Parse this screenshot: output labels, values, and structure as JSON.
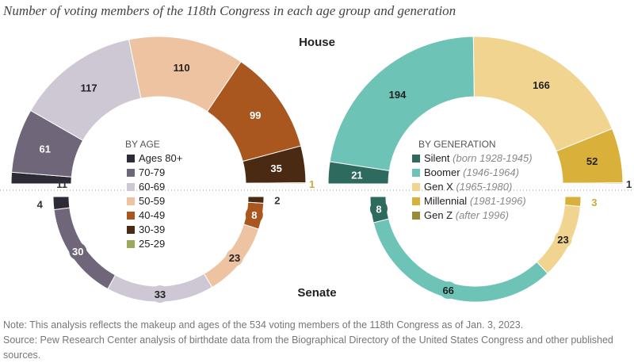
{
  "chart_data": {
    "type": "parliament-semicircle",
    "title": "Number of voting members of the 118th Congress in each age group and generation",
    "chamber_labels": {
      "house": "House",
      "senate": "Senate"
    },
    "charts": [
      {
        "subtitle": "BY AGE",
        "categories": [
          {
            "name": "Ages 80+",
            "color": "#2f2b36"
          },
          {
            "name": "70-79",
            "color": "#6f6679"
          },
          {
            "name": "60-69",
            "color": "#cdc8d4"
          },
          {
            "name": "50-59",
            "color": "#eec3a2"
          },
          {
            "name": "40-49",
            "color": "#a9561f"
          },
          {
            "name": "30-39",
            "color": "#4a2a12"
          },
          {
            "name": "25-29",
            "color": "#9aa95a"
          }
        ],
        "house": [
          11,
          61,
          117,
          110,
          99,
          35,
          1
        ],
        "senate": [
          4,
          30,
          33,
          23,
          8,
          2,
          0
        ]
      },
      {
        "subtitle": "BY GENERATION",
        "categories": [
          {
            "name": "Silent",
            "range": "(born 1928-1945)",
            "color": "#2e6b5e"
          },
          {
            "name": "Boomer",
            "range": "(1946-1964)",
            "color": "#6cc3b6"
          },
          {
            "name": "Gen X",
            "range": "(1965-1980)",
            "color": "#f0d48f"
          },
          {
            "name": "Millennial",
            "range": "(1981-1996)",
            "color": "#d9b13a"
          },
          {
            "name": "Gen Z",
            "range": "(after 1996)",
            "color": "#9c8a3c"
          }
        ],
        "house": [
          21,
          194,
          166,
          52,
          1
        ],
        "senate": [
          8,
          66,
          23,
          3,
          0
        ]
      }
    ]
  },
  "notes": {
    "note": "Note: This analysis reflects the makeup and ages of the 534 voting members of the 118th Congress as of Jan. 3, 2023.",
    "source": "Source: Pew Research Center analysis of birthdate data from the Biographical Directory of the United States Congress and other published sources."
  }
}
